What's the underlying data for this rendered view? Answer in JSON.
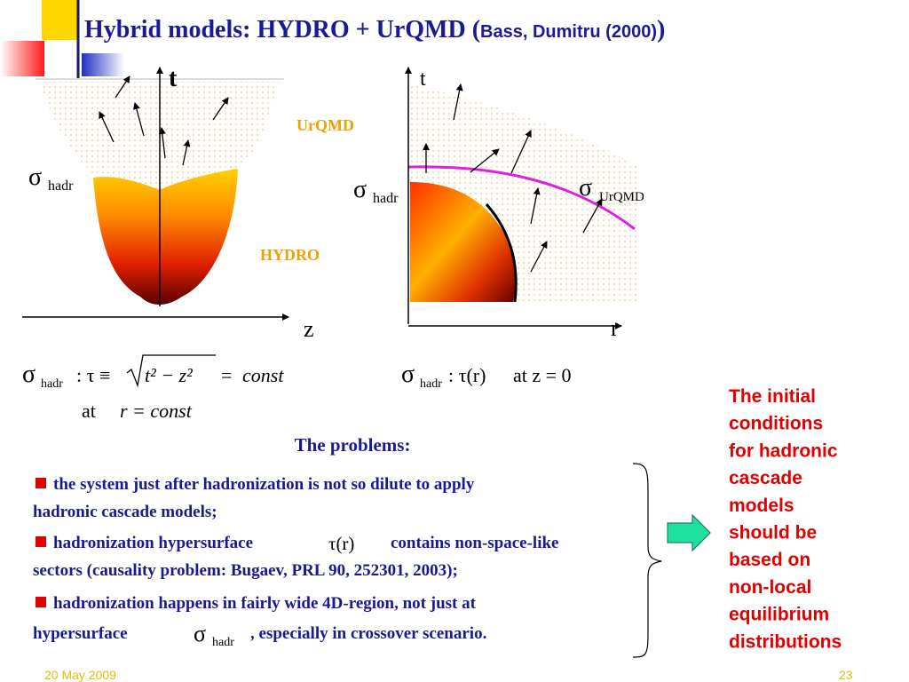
{
  "header": {
    "title": "Hybrid models: HYDRO + UrQMD (",
    "reference": "Bass, Dumitru (2000)",
    "title_end": ")"
  },
  "left_diagram": {
    "time_axis": "t",
    "space_axis": "z",
    "sigma": "σ",
    "sigma_sub": "hadr",
    "upper_region": "UrQMD",
    "lower_region": "HYDRO"
  },
  "right_diagram": {
    "time_axis": "t",
    "space_axis": "r",
    "sigma_left": "σ",
    "sigma_left_sub": "hadr",
    "sigma_right": "σ",
    "sigma_right_sub": "UrQMD"
  },
  "formulas": {
    "left": {
      "sigma": "σ",
      "sub": "hadr",
      "relation": ": τ ≡",
      "radicand": "t² − z²",
      "equals": "=",
      "const": "const",
      "at": "at",
      "condition": "r = const"
    },
    "right": {
      "sigma": "σ",
      "sub": "hadr",
      "relation": ": τ(r)",
      "condition": "at z = 0"
    }
  },
  "problems": {
    "heading": "The problems:",
    "bullets": [
      {
        "line1": "the system just after hadronization is not so dilute to  apply",
        "line2": "hadronic cascade models;"
      },
      {
        "line1": "hadronization hypersurface",
        "math": "τ(r)",
        "line1_end": "contains non-space-like",
        "line2": "sectors (causality problem: Bugaev, PRL 90, 252301, 2003);"
      },
      {
        "line1": "hadronization happens  in fairly wide 4D-region, not just at",
        "line2": "hypersurface",
        "sigma": "σ",
        "sub": "hadr",
        "line2_end": ", especially in crossover scenario."
      }
    ]
  },
  "conclusion": [
    "The initial",
    "conditions",
    "for hadronic",
    "cascade",
    "models",
    "should be",
    "based on",
    "non-local",
    "equilibrium",
    "distributions"
  ],
  "footer": {
    "date": "20 May 2009",
    "page": "23"
  }
}
